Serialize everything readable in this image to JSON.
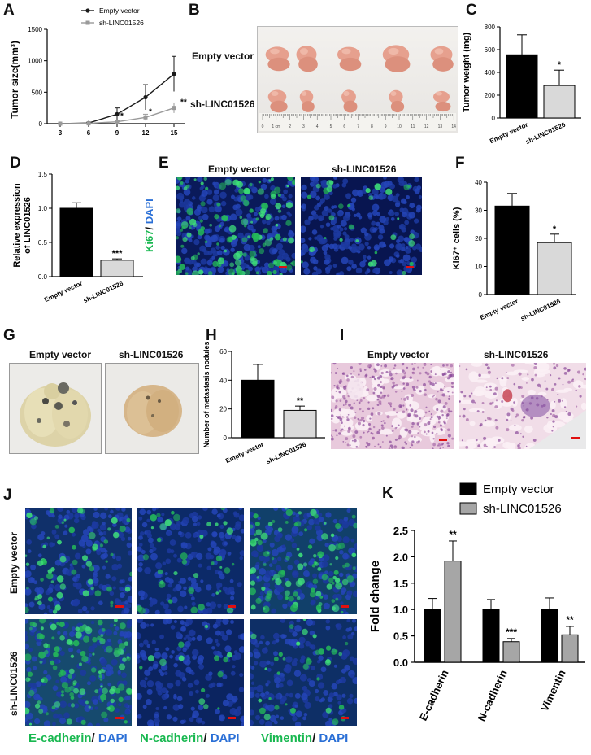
{
  "panels": {
    "A": {
      "label": "A",
      "chart_data": {
        "type": "line",
        "x": [
          3,
          6,
          9,
          12,
          15
        ],
        "series": [
          {
            "name": "Empty vector",
            "values": [
              0,
              10,
              150,
              420,
              790
            ],
            "errors": [
              0,
              10,
              100,
              200,
              280
            ],
            "color": "#1a1a1a"
          },
          {
            "name": "sh-LINC01526",
            "values": [
              0,
              5,
              30,
              100,
              250
            ],
            "errors": [
              0,
              5,
              20,
              50,
              80
            ],
            "color": "#9a9a9a"
          }
        ],
        "ylabel": "Tumor size(mm³)",
        "xticks": [
          "3",
          "6",
          "9",
          "12",
          "15"
        ],
        "yticks": [
          "0",
          "500",
          "1000",
          "1500"
        ],
        "ylim": [
          0,
          1500
        ],
        "annotations": [
          "*",
          "*",
          "**"
        ],
        "legend": "top-right"
      }
    },
    "B": {
      "label": "B",
      "row_labels": [
        "Empty vector",
        "sh-LINC01526"
      ],
      "ruler_ticks": [
        "0",
        "1 cm",
        "2",
        "3",
        "4",
        "5",
        "6",
        "7",
        "8",
        "9",
        "10",
        "11",
        "12",
        "13",
        "14"
      ]
    },
    "C": {
      "label": "C",
      "chart_data": {
        "type": "bar",
        "categories": [
          "Empty vector",
          "sh-LINC01526"
        ],
        "values": [
          555,
          285
        ],
        "errors": [
          175,
          135
        ],
        "colors": [
          "#000000",
          "#d9d9d9"
        ],
        "ylabel": "Tumor weight (mg)",
        "yticks": [
          "0",
          "200",
          "400",
          "600",
          "800"
        ],
        "ylim": [
          0,
          800
        ],
        "annotations": [
          "",
          "*"
        ]
      }
    },
    "D": {
      "label": "D",
      "chart_data": {
        "type": "bar",
        "categories": [
          "Empty vector",
          "sh-LINC01526"
        ],
        "values": [
          1.0,
          0.24
        ],
        "errors": [
          0.08,
          0.02
        ],
        "colors": [
          "#000000",
          "#d9d9d9"
        ],
        "ylabel": "Relative expression of LINC01526",
        "yticks": [
          "0.0",
          "0.5",
          "1.0",
          "1.5"
        ],
        "ylim": [
          0,
          1.5
        ],
        "annotations": [
          "",
          "***"
        ]
      }
    },
    "E": {
      "label": "E",
      "col_labels": [
        "Empty vector",
        "sh-LINC01526"
      ],
      "stain_green": "Ki67",
      "stain_sep": "/ ",
      "stain_blue": "DAPI"
    },
    "F": {
      "label": "F",
      "chart_data": {
        "type": "bar",
        "categories": [
          "Empty vector",
          "sh-LINC01526"
        ],
        "values": [
          31.5,
          18.5
        ],
        "errors": [
          4.5,
          3
        ],
        "colors": [
          "#000000",
          "#d9d9d9"
        ],
        "ylabel": "Ki67⁺ cells (%)",
        "yticks": [
          "0",
          "10",
          "20",
          "30",
          "40"
        ],
        "ylim": [
          0,
          40
        ],
        "annotations": [
          "",
          "*"
        ]
      }
    },
    "G": {
      "label": "G",
      "col_labels": [
        "Empty vector",
        "sh-LINC01526"
      ]
    },
    "H": {
      "label": "H",
      "chart_data": {
        "type": "bar",
        "categories": [
          "Empty vector",
          "sh-LINC01526"
        ],
        "values": [
          40,
          19
        ],
        "errors": [
          11,
          3
        ],
        "colors": [
          "#000000",
          "#d9d9d9"
        ],
        "ylabel": "Number of metastasis nodules",
        "yticks": [
          "0",
          "20",
          "40",
          "60"
        ],
        "ylim": [
          0,
          60
        ],
        "annotations": [
          "",
          "**"
        ]
      }
    },
    "I": {
      "label": "I",
      "col_labels": [
        "Empty vector",
        "sh-LINC01526"
      ]
    },
    "J": {
      "label": "J",
      "row_labels": [
        "Empty vector",
        "sh-LINC01526"
      ],
      "stains": [
        {
          "green": "E-cadherin",
          "sep": "/ ",
          "blue": "DAPI"
        },
        {
          "green": "N-cadherin",
          "sep": "/ ",
          "blue": "DAPI"
        },
        {
          "green": "Vimentin",
          "sep": "/ ",
          "blue": "DAPI"
        }
      ]
    },
    "K": {
      "label": "K",
      "chart_data": {
        "type": "bar",
        "categories": [
          "E-cadherin",
          "N-cadherin",
          "Vimentin"
        ],
        "series": [
          {
            "name": "Empty vector",
            "values": [
              1.0,
              1.0,
              1.0
            ],
            "errors": [
              0.21,
              0.19,
              0.22
            ],
            "color": "#000000"
          },
          {
            "name": "sh-LINC01526",
            "values": [
              1.92,
              0.39,
              0.52
            ],
            "errors": [
              0.38,
              0.06,
              0.16
            ],
            "color": "#a6a6a6"
          }
        ],
        "ylabel": "Fold change",
        "yticks": [
          "0.0",
          "0.5",
          "1.0",
          "1.5",
          "2.0",
          "2.5"
        ],
        "ylim": [
          0,
          2.5
        ],
        "annotations": [
          "**",
          "***",
          "**"
        ],
        "legend": "top"
      }
    }
  },
  "colors": {
    "green": "#18b850",
    "blue": "#2a6fd6",
    "scalebar": "#e01010"
  }
}
